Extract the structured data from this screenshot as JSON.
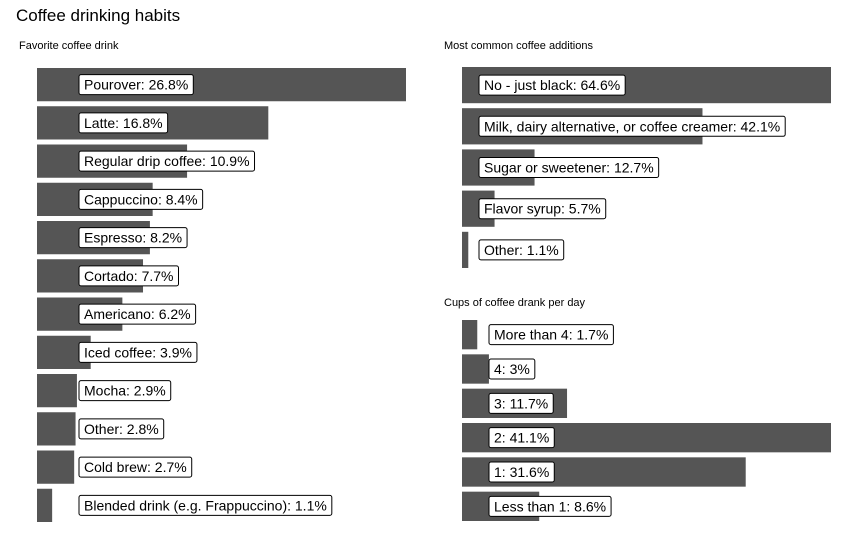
{
  "title": "Coffee drinking habits",
  "colors": {
    "bar": "#555555",
    "label_bg": "#ffffff",
    "label_border": "#000000"
  },
  "chart_data": [
    {
      "type": "bar",
      "orientation": "horizontal",
      "title": "Favorite coffee drink",
      "unit": "%",
      "categories": [
        "Pourover",
        "Latte",
        "Regular drip coffee",
        "Cappuccino",
        "Espresso",
        "Cortado",
        "Americano",
        "Iced coffee",
        "Mocha",
        "Other",
        "Cold brew",
        "Blended drink (e.g. Frappuccino)"
      ],
      "values": [
        26.8,
        16.8,
        10.9,
        8.4,
        8.2,
        7.7,
        6.2,
        3.9,
        2.9,
        2.8,
        2.7,
        1.1
      ],
      "labels": [
        "Pourover: 26.8%",
        "Latte: 16.8%",
        "Regular drip coffee: 10.9%",
        "Cappuccino: 8.4%",
        "Espresso: 8.2%",
        "Cortado: 7.7%",
        "Americano: 6.2%",
        "Iced coffee: 3.9%",
        "Mocha: 2.9%",
        "Other: 2.8%",
        "Cold brew: 2.7%",
        "Blended drink (e.g. Frappuccino): 1.1%"
      ]
    },
    {
      "type": "bar",
      "orientation": "horizontal",
      "title": "Most common coffee additions",
      "unit": "%",
      "categories": [
        "No - just black",
        "Milk, dairy alternative, or coffee creamer",
        "Sugar or sweetener",
        "Flavor syrup",
        "Other"
      ],
      "values": [
        64.6,
        42.1,
        12.7,
        5.7,
        1.1
      ],
      "labels": [
        "No - just black: 64.6%",
        "Milk, dairy alternative, or coffee creamer: 42.1%",
        "Sugar or sweetener: 12.7%",
        "Flavor syrup: 5.7%",
        "Other: 1.1%"
      ]
    },
    {
      "type": "bar",
      "orientation": "horizontal",
      "title": "Cups of coffee drank per day",
      "unit": "%",
      "categories": [
        "More than 4",
        "4",
        "3",
        "2",
        "1",
        "Less than 1"
      ],
      "values": [
        1.7,
        3,
        11.7,
        41.1,
        31.6,
        8.6
      ],
      "labels": [
        "More than 4: 1.7%",
        "4: 3%",
        "3: 11.7%",
        "2: 41.1%",
        "1: 31.6%",
        "Less than 1: 8.6%"
      ]
    }
  ]
}
